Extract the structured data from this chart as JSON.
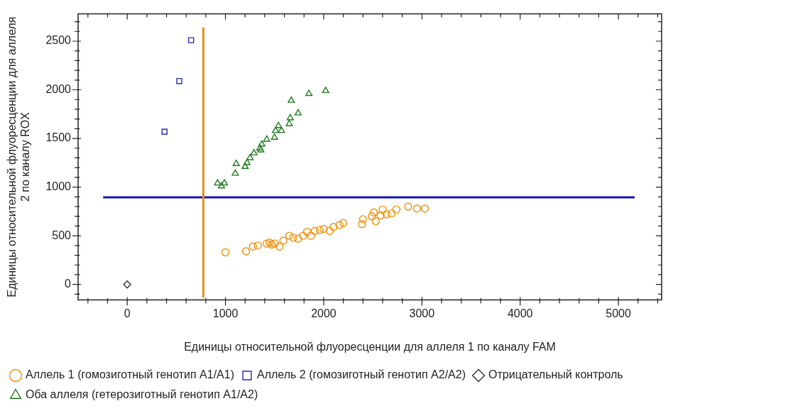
{
  "chart_data": {
    "type": "scatter",
    "xlabel": "Единицы относительной флуоресценции для аллеля 1 по каналу FAM",
    "ylabel": "Единицы относительной флуоресценции для аллеля 2 по каналу ROX",
    "xlim": [
      -500,
      5440
    ],
    "ylim": [
      -160,
      2780
    ],
    "xticks": [
      {
        "value": -400,
        "label": null
      },
      {
        "value": -200,
        "label": null
      },
      0,
      {
        "value": 200,
        "label": null
      },
      {
        "value": 400,
        "label": null
      },
      {
        "value": 600,
        "label": null
      },
      {
        "value": 800,
        "label": null
      },
      1000,
      {
        "value": 1200,
        "label": null
      },
      {
        "value": 1400,
        "label": null
      },
      {
        "value": 1600,
        "label": null
      },
      {
        "value": 1800,
        "label": null
      },
      2000,
      {
        "value": 2200,
        "label": null
      },
      {
        "value": 2400,
        "label": null
      },
      {
        "value": 2600,
        "label": null
      },
      {
        "value": 2800,
        "label": null
      },
      3000,
      {
        "value": 3200,
        "label": null
      },
      {
        "value": 3400,
        "label": null
      },
      {
        "value": 3600,
        "label": null
      },
      {
        "value": 3800,
        "label": null
      },
      4000,
      {
        "value": 4200,
        "label": null
      },
      {
        "value": 4400,
        "label": null
      },
      {
        "value": 4600,
        "label": null
      },
      {
        "value": 4800,
        "label": null
      },
      5000,
      {
        "value": 5200,
        "label": null
      },
      {
        "value": 5400,
        "label": null
      }
    ],
    "yticks": [
      {
        "value": -100,
        "label": null
      },
      0,
      {
        "value": 100,
        "label": null
      },
      {
        "value": 200,
        "label": null
      },
      {
        "value": 300,
        "label": null
      },
      {
        "value": 400,
        "label": null
      },
      500,
      {
        "value": 600,
        "label": null
      },
      {
        "value": 700,
        "label": null
      },
      {
        "value": 800,
        "label": null
      },
      {
        "value": 900,
        "label": null
      },
      1000,
      {
        "value": 1100,
        "label": null
      },
      {
        "value": 1200,
        "label": null
      },
      {
        "value": 1300,
        "label": null
      },
      {
        "value": 1400,
        "label": null
      },
      1500,
      {
        "value": 1600,
        "label": null
      },
      {
        "value": 1700,
        "label": null
      },
      {
        "value": 1800,
        "label": null
      },
      {
        "value": 1900,
        "label": null
      },
      2000,
      {
        "value": 2100,
        "label": null
      },
      {
        "value": 2200,
        "label": null
      },
      {
        "value": 2300,
        "label": null
      },
      {
        "value": 2400,
        "label": null
      },
      2500,
      {
        "value": 2600,
        "label": null
      },
      {
        "value": 2700,
        "label": null
      }
    ],
    "grid": false,
    "legend": "bottom",
    "series": [
      {
        "name": "Аллель 1 (гомозиготный генотип A1/A1)",
        "color": "#f0900a",
        "marker": "circle",
        "x": [
          1000,
          1210,
          1280,
          1330,
          1420,
          1450,
          1500,
          1550,
          1470,
          1590,
          1650,
          1690,
          1740,
          1790,
          1830,
          1870,
          1910,
          1960,
          2000,
          2060,
          2100,
          2160,
          2200,
          2390,
          2400,
          2490,
          2530,
          2510,
          2580,
          2600,
          2640,
          2690,
          2740,
          2860,
          2950,
          3030
        ],
        "values": [
          330,
          340,
          390,
          400,
          420,
          430,
          420,
          390,
          410,
          450,
          500,
          480,
          470,
          500,
          540,
          500,
          550,
          560,
          570,
          550,
          590,
          610,
          630,
          620,
          670,
          700,
          650,
          740,
          710,
          770,
          720,
          730,
          770,
          800,
          780,
          780
        ]
      },
      {
        "name": "Аллель 2 (гомозиготный генотип A2/A2)",
        "color": "#2a2aa8",
        "marker": "square",
        "x": [
          380,
          530,
          650
        ],
        "values": [
          1570,
          2090,
          2510
        ]
      },
      {
        "name": "Отрицательный контроль",
        "color": "#333333",
        "marker": "diamond",
        "x": [
          0
        ],
        "values": [
          0
        ]
      },
      {
        "name": "Оба аллеля (гетерозиготный генотип A1/A2)",
        "color": "#1e7a1e",
        "marker": "triangle",
        "x": [
          920,
          990,
          960,
          1100,
          1110,
          1200,
          1220,
          1250,
          1290,
          1350,
          1370,
          1360,
          1420,
          1500,
          1510,
          1540,
          1570,
          1650,
          1660,
          1740,
          1670,
          1850,
          2020
        ],
        "values": [
          1040,
          1040,
          1010,
          1140,
          1240,
          1210,
          1250,
          1300,
          1350,
          1400,
          1440,
          1380,
          1490,
          1510,
          1580,
          1630,
          1580,
          1650,
          1710,
          1760,
          1890,
          1960,
          1990
        ]
      },
      {
        "type": "line",
        "color": "#e8901a",
        "marker": "none",
        "line_style": "solid",
        "x": [
          775,
          775
        ],
        "values": [
          -135,
          2640
        ]
      },
      {
        "type": "line",
        "color": "#1414b4",
        "marker": "none",
        "line_style": "solid",
        "x": [
          -245,
          5165
        ],
        "values": [
          895,
          895
        ]
      }
    ]
  }
}
